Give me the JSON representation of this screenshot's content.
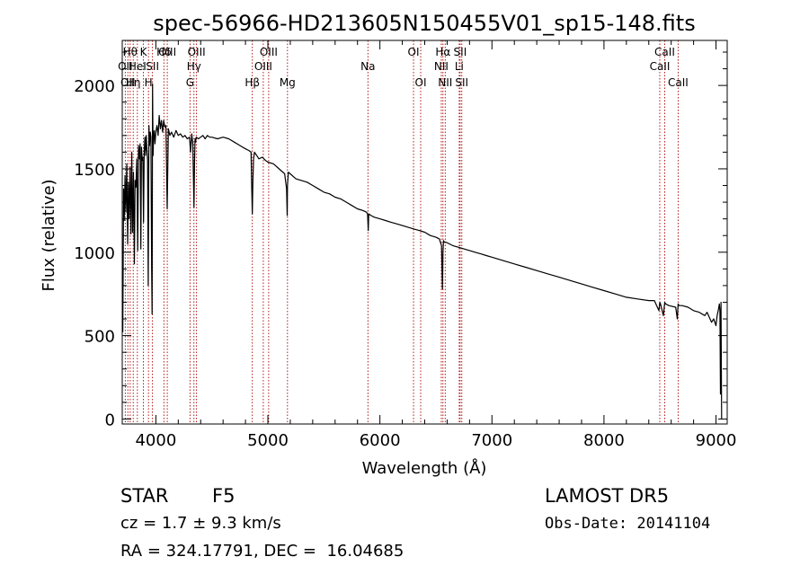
{
  "chart_data": {
    "type": "line",
    "title": "spec-56966-HD213605N150455V01_sp15-148.fits",
    "xlabel": "Wavelength (Å)",
    "ylabel": "Flux (relative)",
    "xlim": [
      3700,
      9100
    ],
    "ylim": [
      -30,
      2270
    ],
    "xticks": [
      4000,
      5000,
      6000,
      7000,
      8000,
      9000
    ],
    "yticks": [
      0,
      500,
      1000,
      1500,
      2000
    ],
    "grid": false,
    "line_color": "#000000",
    "marker_color": "#aa0000",
    "series": [
      {
        "x": [
          3705,
          3712,
          3718,
          3725,
          3732,
          3740,
          3748,
          3755,
          3762,
          3770,
          3778,
          3785,
          3792,
          3800,
          3808,
          3815,
          3822,
          3830,
          3838,
          3845,
          3852,
          3860,
          3866,
          3872,
          3878,
          3884,
          3890,
          3896,
          3902,
          3908,
          3914,
          3920,
          3926,
          3932,
          3938,
          3944,
          3950,
          3956,
          3962,
          3966,
          3970,
          3975,
          3980,
          3986,
          3992,
          4000,
          4010,
          4020,
          4030,
          4040,
          4050,
          4060,
          4070,
          4080,
          4090,
          4101,
          4112,
          4125,
          4140,
          4160,
          4180,
          4200,
          4220,
          4240,
          4260,
          4280,
          4300,
          4310,
          4320,
          4330,
          4340,
          4345,
          4350,
          4355,
          4360,
          4380,
          4400,
          4420,
          4440,
          4460,
          4480,
          4500,
          4550,
          4600,
          4650,
          4700,
          4750,
          4800,
          4830,
          4850,
          4855,
          4861,
          4866,
          4872,
          4880,
          4900,
          4920,
          4950,
          4980,
          5000,
          5050,
          5100,
          5150,
          5167,
          5172,
          5175,
          5183,
          5200,
          5250,
          5300,
          5350,
          5400,
          5450,
          5500,
          5550,
          5600,
          5650,
          5700,
          5750,
          5800,
          5850,
          5880,
          5890,
          5893,
          5896,
          5900,
          5920,
          5950,
          6000,
          6050,
          6100,
          6150,
          6200,
          6250,
          6300,
          6350,
          6400,
          6450,
          6500,
          6530,
          6550,
          6558,
          6563,
          6568,
          6575,
          6590,
          6620,
          6650,
          6700,
          6750,
          6800,
          6850,
          6900,
          6950,
          7000,
          7100,
          7200,
          7300,
          7400,
          7500,
          7600,
          7700,
          7800,
          7900,
          8000,
          8100,
          8200,
          8300,
          8400,
          8450,
          8490,
          8498,
          8505,
          8530,
          8542,
          8550,
          8580,
          8640,
          8655,
          8662,
          8670,
          8700,
          8750,
          8800,
          8850,
          8900,
          8920,
          8940,
          8960,
          8980,
          9000,
          9010,
          9020,
          9030,
          9035,
          9040,
          9045,
          9050
        ],
        "y": [
          520,
          1380,
          1190,
          1460,
          1240,
          1530,
          1050,
          1420,
          1200,
          1510,
          1110,
          1600,
          1120,
          1480,
          930,
          1430,
          1390,
          1560,
          1010,
          1640,
          1560,
          1650,
          1020,
          1630,
          1550,
          1570,
          1180,
          1600,
          1690,
          1580,
          1700,
          1620,
          1550,
          800,
          1760,
          1640,
          1720,
          1690,
          900,
          630,
          2010,
          1580,
          1700,
          1730,
          1650,
          1720,
          1760,
          1700,
          1820,
          1740,
          1790,
          1720,
          1790,
          1750,
          1760,
          1260,
          1740,
          1700,
          1720,
          1690,
          1730,
          1700,
          1710,
          1690,
          1700,
          1680,
          1690,
          1600,
          1710,
          1650,
          1270,
          1530,
          1680,
          1660,
          1690,
          1680,
          1690,
          1700,
          1680,
          1700,
          1690,
          1690,
          1680,
          1690,
          1680,
          1660,
          1640,
          1620,
          1610,
          1600,
          1420,
          1230,
          1420,
          1560,
          1600,
          1580,
          1560,
          1570,
          1550,
          1540,
          1530,
          1500,
          1470,
          1380,
          1220,
          1400,
          1480,
          1470,
          1440,
          1430,
          1420,
          1400,
          1380,
          1360,
          1350,
          1330,
          1320,
          1300,
          1280,
          1260,
          1250,
          1240,
          1230,
          1180,
          1130,
          1230,
          1220,
          1210,
          1200,
          1190,
          1180,
          1170,
          1160,
          1150,
          1140,
          1130,
          1120,
          1100,
          1090,
          1080,
          1040,
          780,
          1000,
          1070,
          1060,
          1060,
          1050,
          1040,
          1030,
          1020,
          1010,
          1000,
          990,
          980,
          970,
          950,
          930,
          910,
          890,
          870,
          850,
          830,
          810,
          790,
          770,
          750,
          730,
          720,
          710,
          710,
          650,
          700,
          690,
          620,
          700,
          690,
          680,
          670,
          600,
          690,
          680,
          680,
          670,
          650,
          640,
          620,
          640,
          610,
          580,
          600,
          560,
          620,
          650,
          690,
          650,
          150,
          700,
          0
        ]
      }
    ],
    "line_markers": [
      {
        "wave": 3727,
        "label": "OII",
        "row": 2
      },
      {
        "wave": 3750,
        "label": "OII",
        "row": 3
      },
      {
        "wave": 3771,
        "label": "Hθ",
        "row": 1
      },
      {
        "wave": 3798,
        "label": "Hη",
        "row": 3
      },
      {
        "wave": 3835,
        "label": "HeI",
        "row": 2
      },
      {
        "wave": 3889,
        "label": "K",
        "row": 1
      },
      {
        "wave": 3934,
        "label": "H",
        "row": 3
      },
      {
        "wave": 3970,
        "label": "SII",
        "row": 2
      },
      {
        "wave": 4072,
        "label": "Hδ",
        "row": 1
      },
      {
        "wave": 4102,
        "label": "OIII",
        "row": 1
      },
      {
        "wave": 4305,
        "label": "G",
        "row": 3
      },
      {
        "wave": 4340,
        "label": "Hγ",
        "row": 2
      },
      {
        "wave": 4363,
        "label": "OIII",
        "row": 1
      },
      {
        "wave": 4861,
        "label": "Hβ",
        "row": 3
      },
      {
        "wave": 4959,
        "label": "OIII",
        "row": 2
      },
      {
        "wave": 5007,
        "label": "OIII",
        "row": 1
      },
      {
        "wave": 5175,
        "label": "Mg",
        "row": 3
      },
      {
        "wave": 5893,
        "label": "Na",
        "row": 2
      },
      {
        "wave": 6300,
        "label": "OI",
        "row": 1
      },
      {
        "wave": 6364,
        "label": "OI",
        "row": 3
      },
      {
        "wave": 6548,
        "label": "NII",
        "row": 2
      },
      {
        "wave": 6563,
        "label": "Hα",
        "row": 1
      },
      {
        "wave": 6583,
        "label": "NII",
        "row": 3
      },
      {
        "wave": 6708,
        "label": "Li",
        "row": 2
      },
      {
        "wave": 6716,
        "label": "SII",
        "row": 1
      },
      {
        "wave": 6731,
        "label": "SII",
        "row": 3
      },
      {
        "wave": 8498,
        "label": "CaII",
        "row": 2
      },
      {
        "wave": 8542,
        "label": "CaII",
        "row": 1
      },
      {
        "wave": 8662,
        "label": "CaII",
        "row": 3
      }
    ]
  },
  "info": {
    "object_class": "STAR",
    "subclass": "F5",
    "survey": "LAMOST DR5",
    "velocity": "cz = 1.7 ± 9.3 km/s",
    "obs_date": "Obs-Date: 20141104",
    "coords": "RA = 324.17791, DEC =  16.04685"
  }
}
